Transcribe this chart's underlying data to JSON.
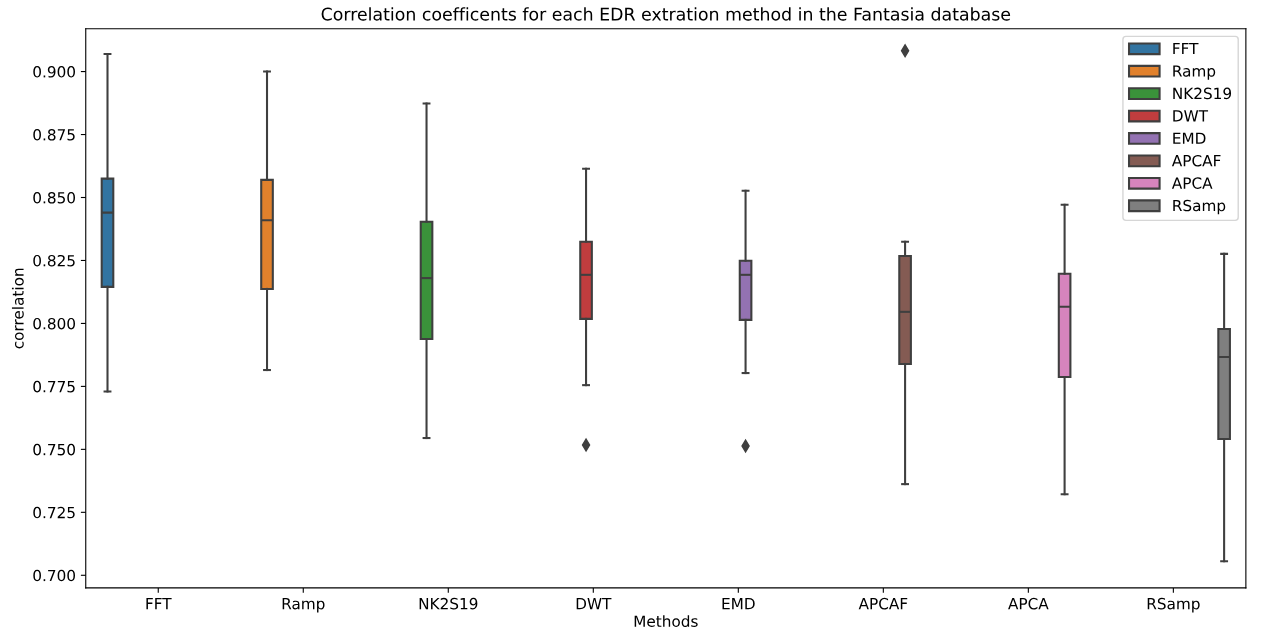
{
  "chart_data": {
    "type": "box",
    "title": "Correlation coefficents for each EDR extration method in the Fantasia database",
    "xlabel": "Methods",
    "ylabel": "correlation",
    "categories": [
      "FFT",
      "Ramp",
      "NK2S19",
      "DWT",
      "EMD",
      "APCAF",
      "APCA",
      "RSamp"
    ],
    "ylim": [
      0.695,
      0.917
    ],
    "yticks": [
      {
        "value": 0.7,
        "label": "0.700"
      },
      {
        "value": 0.725,
        "label": "0.725"
      },
      {
        "value": 0.75,
        "label": "0.750"
      },
      {
        "value": 0.775,
        "label": "0.775"
      },
      {
        "value": 0.8,
        "label": "0.800"
      },
      {
        "value": 0.825,
        "label": "0.825"
      },
      {
        "value": 0.85,
        "label": "0.850"
      },
      {
        "value": 0.875,
        "label": "0.875"
      },
      {
        "value": 0.9,
        "label": "0.900"
      }
    ],
    "grid": false,
    "legend": "top right",
    "marker": "diamond",
    "series": [
      {
        "name": "FFT",
        "color": "#3274a1",
        "boxes": [
          {
            "low": 0.773,
            "q1": 0.8145,
            "median": 0.844,
            "q3": 0.8575,
            "high": 0.907
          },
          null,
          null,
          null,
          null,
          null,
          null,
          null
        ]
      },
      {
        "name": "Ramp",
        "color": "#e1812c",
        "boxes": [
          null,
          {
            "low": 0.7815,
            "q1": 0.8137,
            "median": 0.841,
            "q3": 0.857,
            "high": 0.9
          },
          null,
          null,
          null,
          null,
          null,
          null
        ]
      },
      {
        "name": "NK2S19",
        "color": "#3a923a",
        "boxes": [
          null,
          null,
          {
            "low": 0.7545,
            "q1": 0.7938,
            "median": 0.818,
            "q3": 0.8404,
            "high": 0.8873
          },
          null,
          null,
          null,
          null,
          null
        ]
      },
      {
        "name": "DWT",
        "color": "#c03d3e",
        "boxes": [
          null,
          null,
          null,
          {
            "low": 0.7755,
            "q1": 0.8018,
            "median": 0.8193,
            "q3": 0.8324,
            "high": 0.8614,
            "outliers": [
              0.7517
            ]
          },
          null,
          null,
          null,
          null
        ]
      },
      {
        "name": "EMD",
        "color": "#9372b2",
        "boxes": [
          null,
          null,
          null,
          null,
          {
            "low": 0.7803,
            "q1": 0.8014,
            "median": 0.8193,
            "q3": 0.8249,
            "high": 0.8527,
            "outliers": [
              0.7513
            ]
          },
          null,
          null,
          null
        ]
      },
      {
        "name": "APCAF",
        "color": "#845b53",
        "boxes": [
          null,
          null,
          null,
          null,
          null,
          {
            "low": 0.7362,
            "q1": 0.7839,
            "median": 0.8046,
            "q3": 0.8268,
            "high": 0.8324,
            "outliers": [
              0.9083
            ]
          },
          null,
          null
        ]
      },
      {
        "name": "APCA",
        "color": "#d684bd",
        "boxes": [
          null,
          null,
          null,
          null,
          null,
          null,
          {
            "low": 0.7322,
            "q1": 0.7787,
            "median": 0.8066,
            "q3": 0.8197,
            "high": 0.8471
          },
          null
        ]
      },
      {
        "name": "RSamp",
        "color": "#7f7f7f",
        "boxes": [
          null,
          null,
          null,
          null,
          null,
          null,
          null,
          {
            "low": 0.7056,
            "q1": 0.7541,
            "median": 0.7867,
            "q3": 0.7978,
            "high": 0.8276
          }
        ]
      }
    ]
  }
}
